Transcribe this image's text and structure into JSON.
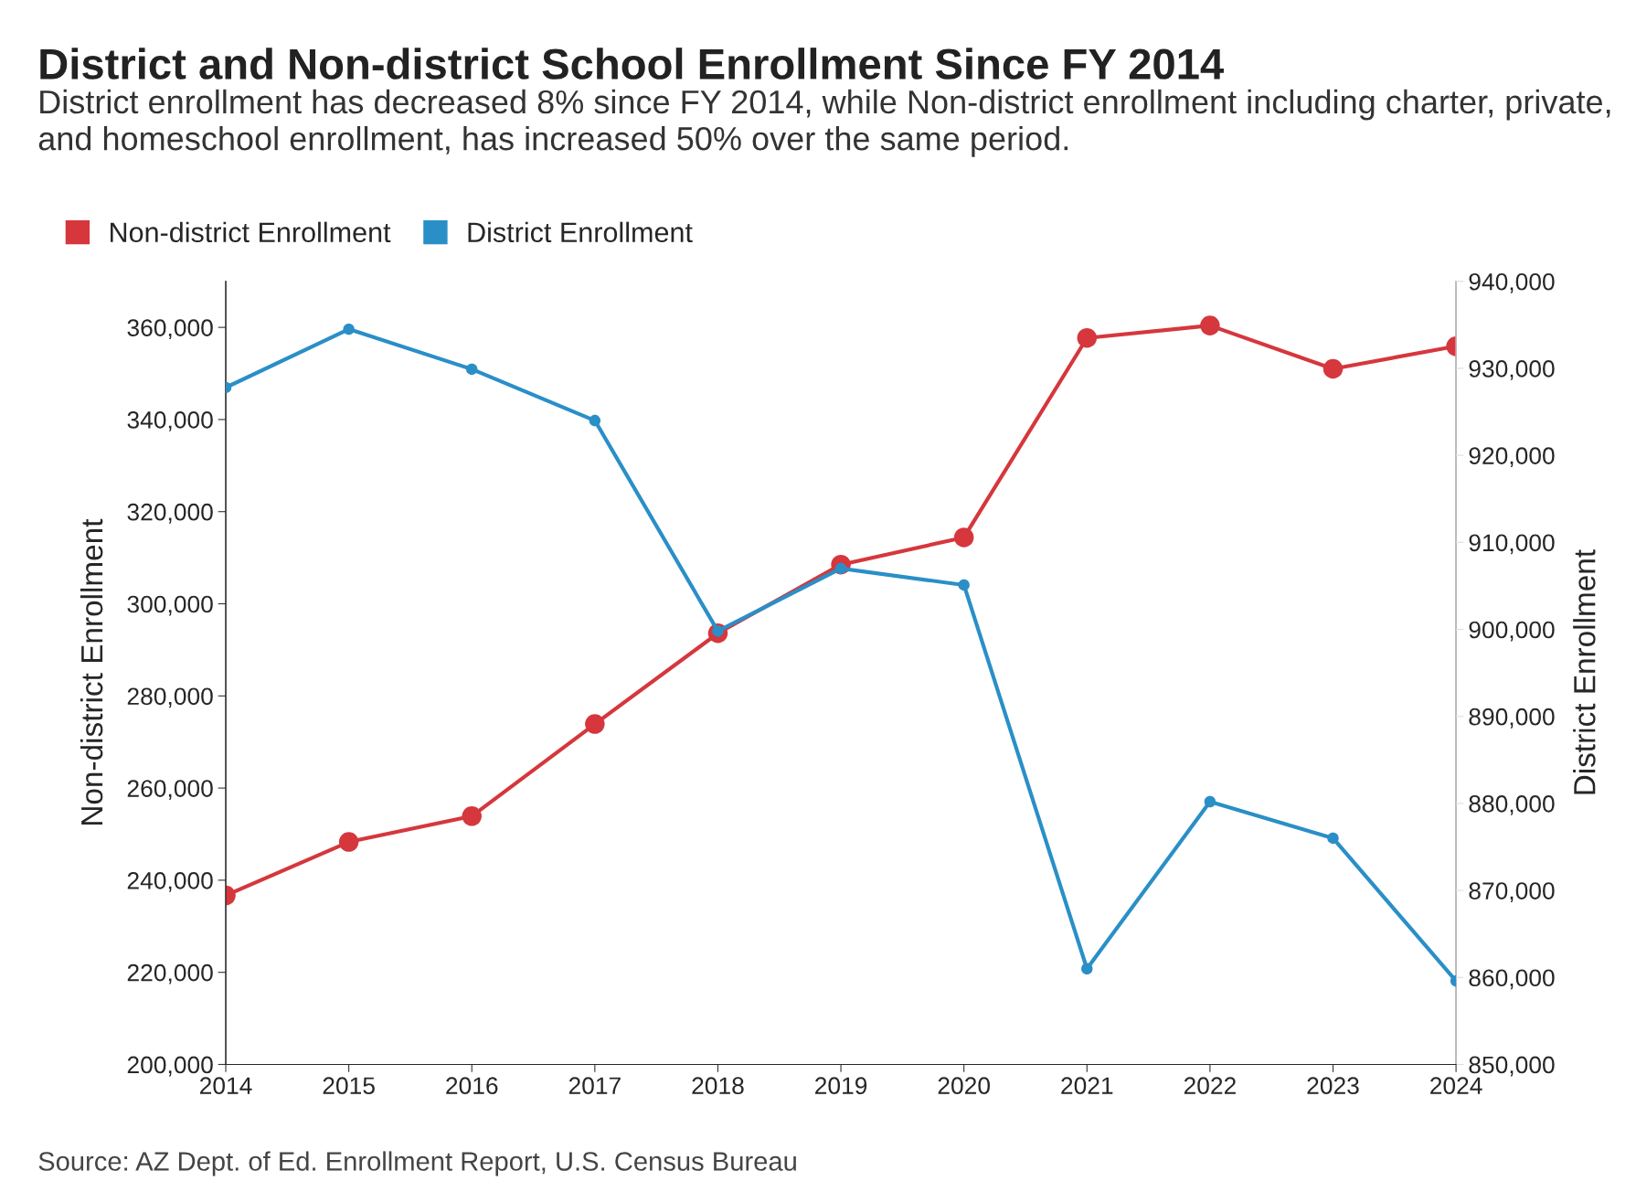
{
  "chart_data": {
    "type": "line",
    "title": "District and Non-district School Enrollment Since FY 2014",
    "subtitle": "District enrollment has decreased 8% since FY 2014, while Non-district enrollment including charter, private, and homeschool enrollment, has increased 50% over the same period.",
    "ylabel": "Non-district Enrollment",
    "y2label": "District Enrollment",
    "x": [
      2014,
      2015,
      2016,
      2017,
      2018,
      2019,
      2020,
      2021,
      2022,
      2023,
      2024
    ],
    "series": [
      {
        "name": "Non-district Enrollment",
        "color": "#d5373d",
        "values": [
          236700,
          248300,
          253900,
          273900,
          293600,
          308500,
          314400,
          357700,
          360400,
          351000,
          355900
        ]
      },
      {
        "name": "District Enrollment",
        "color": "#2a8fc7",
        "axis": "y2",
        "values": [
          927800,
          934500,
          929900,
          924000,
          899800,
          907000,
          905100,
          861000,
          880200,
          876000,
          859600
        ]
      }
    ],
    "xlim": [
      2014,
      2024
    ],
    "xticks": [
      2014,
      2015,
      2016,
      2017,
      2018,
      2019,
      2020,
      2021,
      2022,
      2023,
      2024
    ],
    "ylim": [
      200000,
      370000
    ],
    "yticks": [
      {
        "value": 200000,
        "label": "200,000"
      },
      {
        "value": 220000,
        "label": "220,000"
      },
      {
        "value": 240000,
        "label": "240,000"
      },
      {
        "value": 260000,
        "label": "260,000"
      },
      {
        "value": 280000,
        "label": "280,000"
      },
      {
        "value": 300000,
        "label": "300,000"
      },
      {
        "value": 320000,
        "label": "320,000"
      },
      {
        "value": 340000,
        "label": "340,000"
      },
      {
        "value": 360000,
        "label": "360,000"
      }
    ],
    "y2lim": [
      850000,
      940000
    ],
    "y2ticks": [
      {
        "value": 850000,
        "label": "850,000"
      },
      {
        "value": 860000,
        "label": "860,000"
      },
      {
        "value": 870000,
        "label": "870,000"
      },
      {
        "value": 880000,
        "label": "880,000"
      },
      {
        "value": 890000,
        "label": "890,000"
      },
      {
        "value": 900000,
        "label": "900,000"
      },
      {
        "value": 910000,
        "label": "910,000"
      },
      {
        "value": 920000,
        "label": "920,000"
      },
      {
        "value": 930000,
        "label": "930,000"
      },
      {
        "value": 940000,
        "label": "940,000"
      }
    ],
    "annotations": [
      "Source: AZ Dept. of Ed. Enrollment Report, U.S. Census Bureau"
    ],
    "grid": false,
    "legend": "top left",
    "marker": "circle",
    "line_style": "solid"
  }
}
